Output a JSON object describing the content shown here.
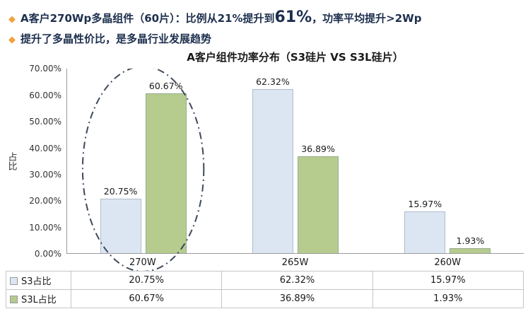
{
  "header": {
    "bullets": [
      {
        "icon": "◆",
        "segments": [
          {
            "text": "A客户270Wp多晶组件（60片）：比例从21%提升到",
            "big": false
          },
          {
            "text": "61%",
            "big": true
          },
          {
            "text": "，功率平均提升>2Wp",
            "big": false
          }
        ]
      },
      {
        "icon": "◆",
        "segments": [
          {
            "text": "提升了多晶性价比，是多晶行业发展趋势",
            "big": false
          }
        ]
      }
    ]
  },
  "chart_data": {
    "type": "bar",
    "title": "A客户组件功率分布（S3硅片 VS S3L硅片）",
    "ylabel": "占比",
    "xlabel": "",
    "categories": [
      "270W",
      "265W",
      "260W"
    ],
    "series": [
      {
        "name": "S3占比",
        "color": "#dce6f2",
        "values": [
          20.75,
          62.32,
          15.97
        ],
        "labels": [
          "20.75%",
          "62.32%",
          "15.97%"
        ]
      },
      {
        "name": "S3L占比",
        "color": "#b5cc8e",
        "values": [
          60.67,
          36.89,
          1.93
        ],
        "labels": [
          "60.67%",
          "36.89%",
          "1.93%"
        ]
      }
    ],
    "ylim": [
      0,
      70
    ],
    "yticks": [
      "70.00%",
      "60.00%",
      "50.00%",
      "40.00%",
      "30.00%",
      "20.00%",
      "10.00%",
      "0.00%"
    ],
    "grid": "off",
    "legend_position": "data-table-left",
    "annotation": {
      "shape": "dash-dot-ellipse",
      "target_category": "270W"
    }
  },
  "table": {
    "rows": [
      {
        "legend_color": "#dce6f2",
        "label": "S3占比",
        "values": [
          "20.75%",
          "62.32%",
          "15.97%"
        ]
      },
      {
        "legend_color": "#b5cc8e",
        "label": "S3L占比",
        "values": [
          "60.67%",
          "36.89%",
          "1.93%"
        ]
      }
    ]
  }
}
